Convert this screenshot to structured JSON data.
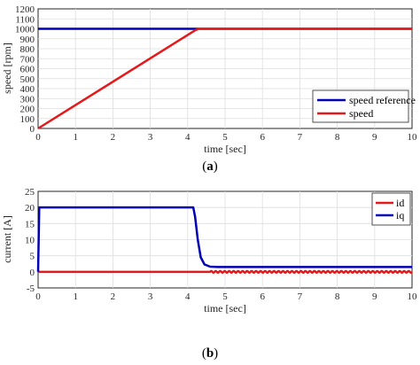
{
  "chart_data": [
    {
      "type": "line",
      "caption": "(a)",
      "caption_letter": "a",
      "xlabel": "time [sec]",
      "ylabel": "speed [rpm]",
      "xlim": [
        0,
        10
      ],
      "ylim": [
        0,
        1200
      ],
      "xticks": [
        0,
        1,
        2,
        3,
        4,
        5,
        6,
        7,
        8,
        9,
        10
      ],
      "yticks": [
        0,
        100,
        200,
        300,
        400,
        500,
        600,
        700,
        800,
        900,
        1000,
        1100,
        1200
      ],
      "grid": true,
      "legend_position": "bottom-right",
      "series": [
        {
          "name": "speed reference",
          "color": "#0000b4",
          "x": [
            0,
            10
          ],
          "y": [
            1000,
            1000
          ]
        },
        {
          "name": "speed",
          "color": "#e31a1c",
          "x": [
            0,
            4.2,
            4.3,
            10
          ],
          "y": [
            0,
            985,
            1000,
            1000
          ]
        }
      ]
    },
    {
      "type": "line",
      "caption": "(b)",
      "caption_letter": "b",
      "xlabel": "time [sec]",
      "ylabel": "current [A]",
      "xlim": [
        0,
        10
      ],
      "ylim": [
        -5,
        25
      ],
      "xticks": [
        0,
        1,
        2,
        3,
        4,
        5,
        6,
        7,
        8,
        9,
        10
      ],
      "yticks": [
        -5,
        0,
        5,
        10,
        15,
        20,
        25
      ],
      "grid": true,
      "legend_position": "top-right",
      "series": [
        {
          "name": "id",
          "color": "#e31a1c",
          "x": [
            0,
            4.6,
            10
          ],
          "y": [
            0,
            0,
            0
          ],
          "ripple": {
            "from": 4.6,
            "to": 10,
            "amplitude": 0.25,
            "period": 0.12
          }
        },
        {
          "name": "iq",
          "color": "#0000b4",
          "x": [
            0,
            0.03,
            4.15,
            4.2,
            4.27,
            4.35,
            4.45,
            4.6,
            4.8,
            10
          ],
          "y": [
            0,
            20,
            20,
            17,
            10,
            4.5,
            2.3,
            1.6,
            1.5,
            1.5
          ]
        }
      ]
    }
  ]
}
